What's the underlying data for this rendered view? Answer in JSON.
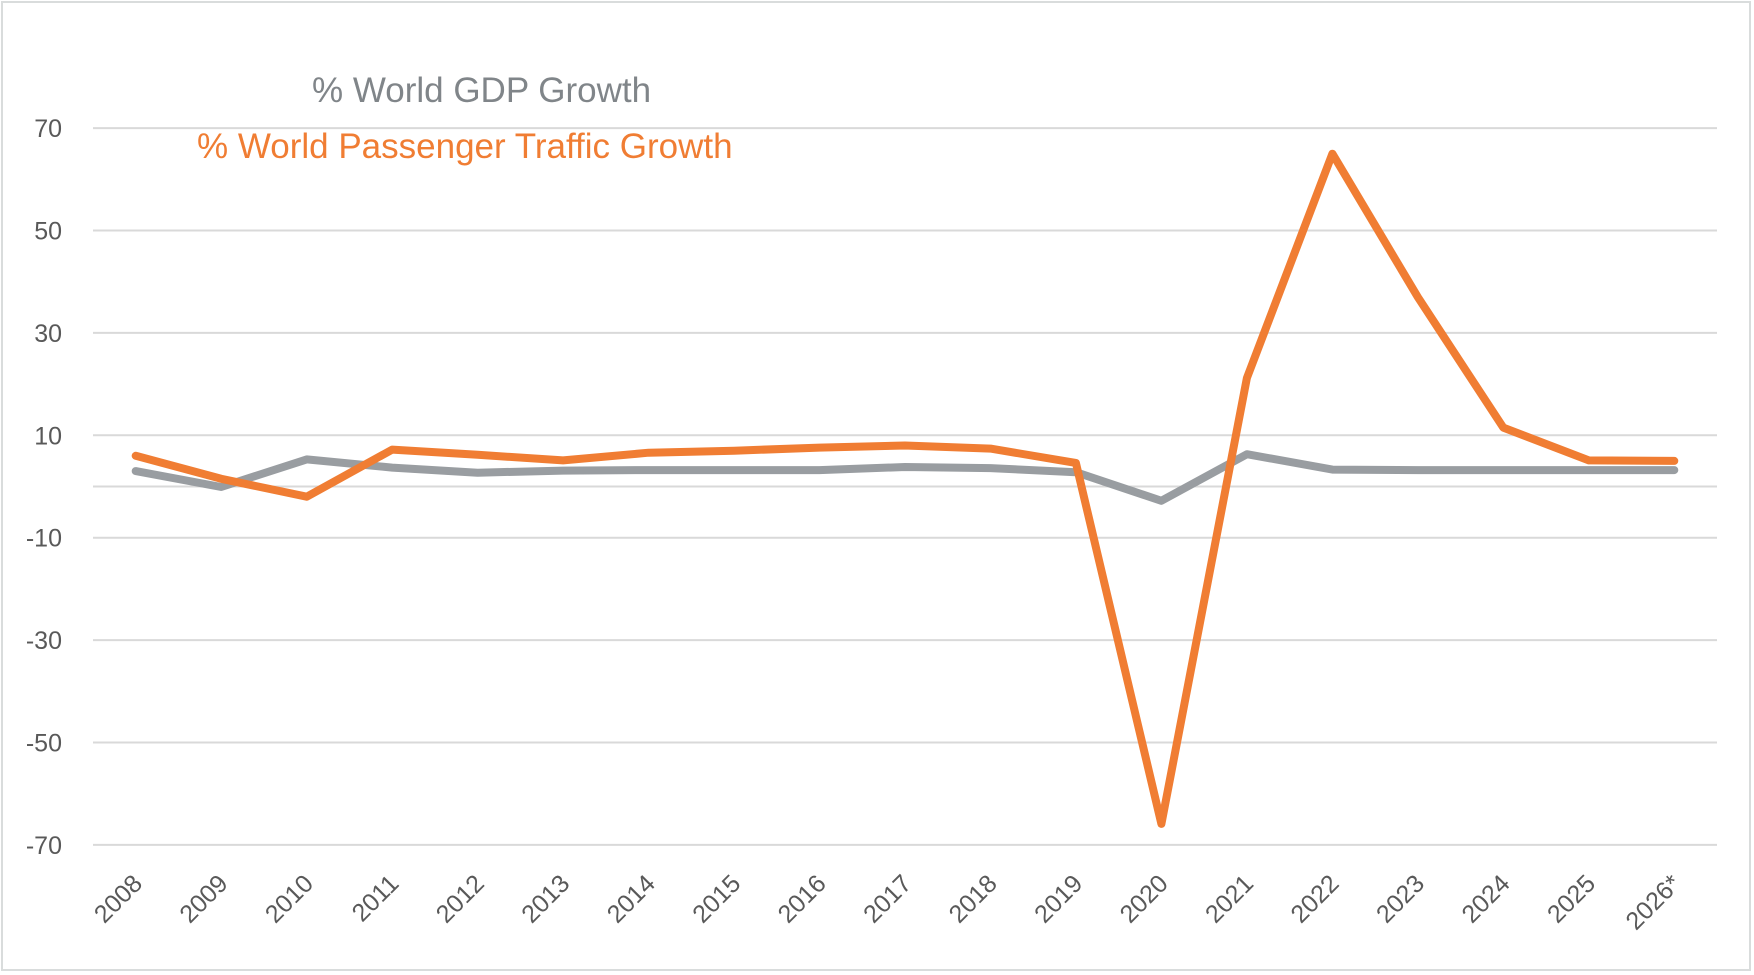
{
  "chart_data": {
    "type": "line",
    "title": "",
    "xlabel": "",
    "ylabel": "",
    "categories": [
      "2008",
      "2009",
      "2010",
      "2011",
      "2012",
      "2013",
      "2014",
      "2015",
      "2016",
      "2017",
      "2018",
      "2019",
      "2020",
      "2021",
      "2022",
      "2023",
      "2024",
      "2025",
      "2026*"
    ],
    "series": [
      {
        "name": "% World GDP Growth",
        "color": "#999da1",
        "values": [
          3.0,
          -0.1,
          5.3,
          3.7,
          2.7,
          3.1,
          3.2,
          3.2,
          3.2,
          3.8,
          3.6,
          2.8,
          -2.8,
          6.3,
          3.3,
          3.2,
          3.2,
          3.2,
          3.2
        ]
      },
      {
        "name": "% World Passenger Traffic Growth",
        "color": "#f07d33",
        "values": [
          6.0,
          1.5,
          -2.0,
          7.2,
          6.2,
          5.1,
          6.6,
          7.0,
          7.6,
          8.0,
          7.4,
          4.6,
          -65.9,
          21.2,
          65.0,
          37.0,
          11.5,
          5.1,
          5.0
        ]
      }
    ],
    "ylim": [
      -80,
      80
    ],
    "yticks": [
      -70,
      -50,
      -30,
      -10,
      10,
      30,
      50,
      70
    ],
    "ytick_labels": [
      "-70",
      "-50",
      "-30",
      "-10",
      "10",
      "30",
      "50",
      "70"
    ],
    "extra_gridlines": [
      0
    ],
    "grid": true,
    "legend": {
      "placement": "top-left",
      "entries": [
        "% World GDP Growth",
        "% World Passenger Traffic Growth"
      ],
      "colors": [
        "#808589",
        "#f07d33"
      ]
    }
  },
  "colors": {
    "gridline": "#d9d9d9",
    "tick_text": "#595959",
    "frame": "#d9dcdc"
  }
}
